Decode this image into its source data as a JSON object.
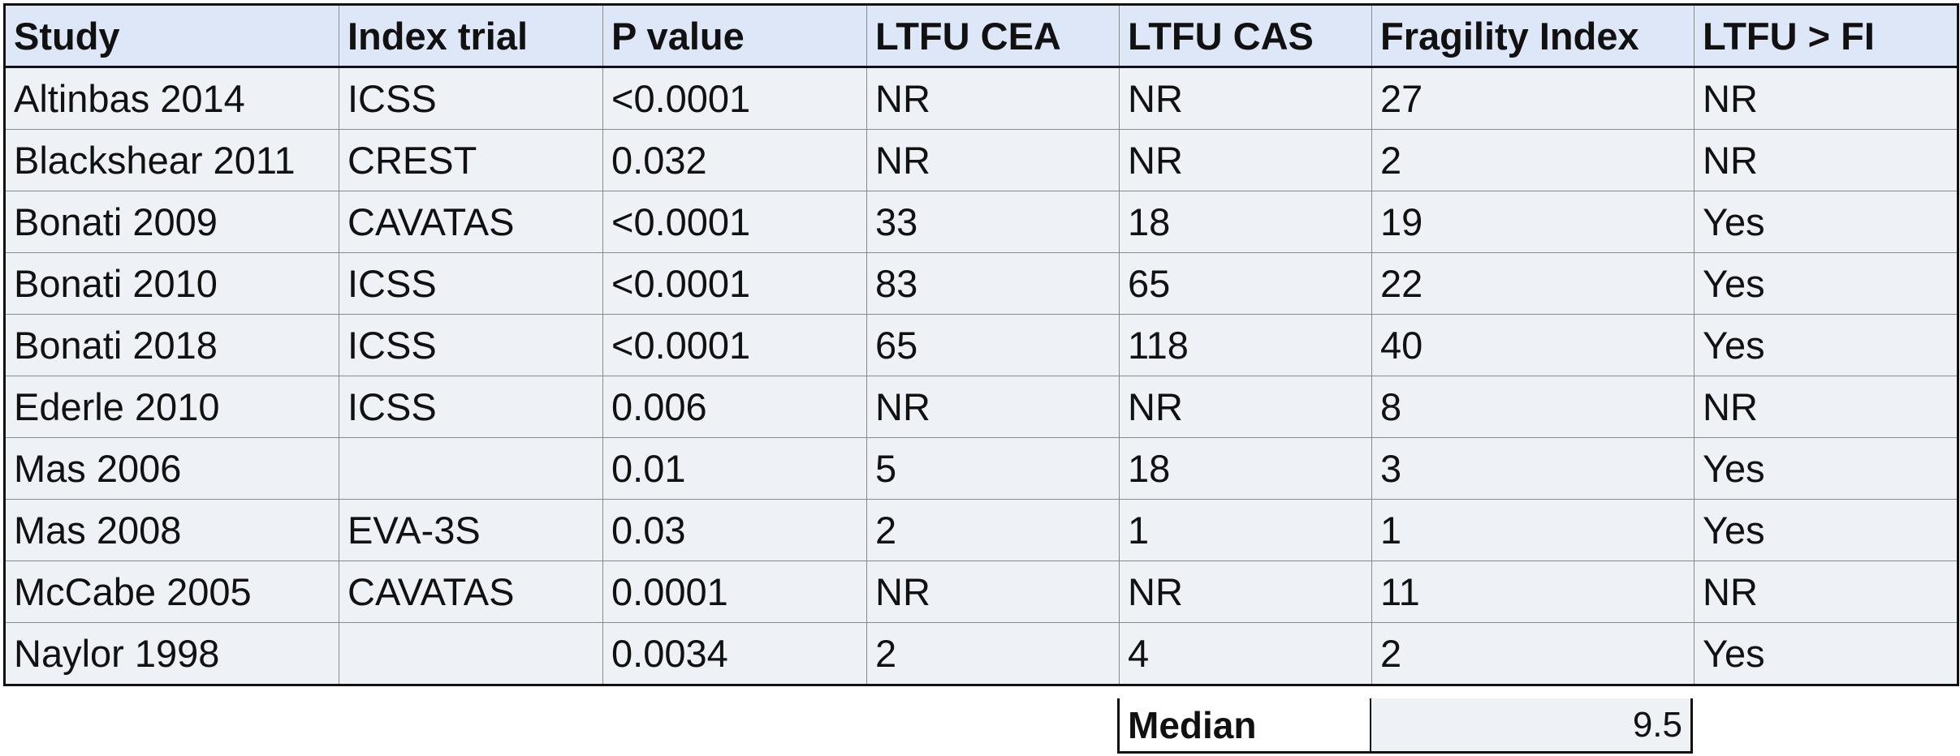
{
  "table": {
    "headers": [
      "Study",
      "Index trial",
      "P value",
      "LTFU CEA",
      "LTFU CAS",
      "Fragility Index",
      "LTFU > FI"
    ],
    "rows": [
      [
        "Altinbas 2014",
        "ICSS",
        "<0.0001",
        "NR",
        "NR",
        "27",
        "NR"
      ],
      [
        "Blackshear 2011",
        "CREST",
        "0.032",
        "NR",
        "NR",
        "2",
        "NR"
      ],
      [
        "Bonati 2009",
        "CAVATAS",
        "<0.0001",
        "33",
        "18",
        "19",
        "Yes"
      ],
      [
        "Bonati 2010",
        "ICSS",
        "<0.0001",
        "83",
        "65",
        "22",
        "Yes"
      ],
      [
        "Bonati 2018",
        "ICSS",
        "<0.0001",
        "65",
        "118",
        "40",
        "Yes"
      ],
      [
        "Ederle 2010",
        "ICSS",
        "0.006",
        "NR",
        "NR",
        "8",
        "NR"
      ],
      [
        "Mas 2006",
        "",
        "0.01",
        "5",
        "18",
        "3",
        "Yes"
      ],
      [
        "Mas 2008",
        "EVA-3S",
        "0.03",
        "2",
        "1",
        "1",
        "Yes"
      ],
      [
        "McCabe 2005",
        "CAVATAS",
        "0.0001",
        "NR",
        "NR",
        "11",
        "NR"
      ],
      [
        "Naylor 1998",
        "",
        "0.0034",
        "2",
        "4",
        "2",
        "Yes"
      ]
    ]
  },
  "summary": {
    "median_label": "Median",
    "median_value": "9.5"
  },
  "colors": {
    "header_fill": "#dde7f8",
    "cell_fill": "#eef1f6",
    "border_dark": "#111111",
    "border_grid": "#8a8a8a"
  }
}
